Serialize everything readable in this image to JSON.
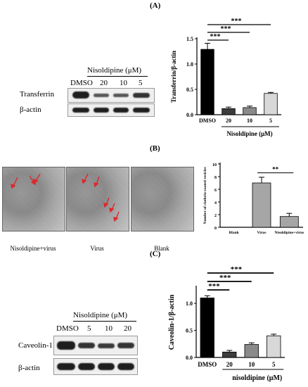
{
  "panels": {
    "A": {
      "label": "(A)",
      "blot": {
        "header": "Nisoldipine (μM)",
        "lanes": [
          "DMSO",
          "20",
          "10",
          "5"
        ],
        "rows": [
          "Transferrin",
          "β-actin"
        ]
      },
      "chart": {
        "ylabel": "Transferrin/β-actin",
        "xlabel": "Nisoldipine (μM)",
        "yticks": [
          "0.0",
          "0.5",
          "1.0",
          "1.5"
        ],
        "sig": [
          "***",
          "***",
          "***"
        ]
      }
    },
    "B": {
      "label": "(B)",
      "images": [
        {
          "caption": "Nisoldipine+virus"
        },
        {
          "caption": "Virus"
        },
        {
          "caption": "Blank"
        }
      ],
      "chart": {
        "ylabel": "Number of clathrin-coated vesicles",
        "yticks": [
          "0",
          "2",
          "4",
          "6",
          "8",
          "10"
        ],
        "sig": "**"
      }
    },
    "C": {
      "label": "(C)",
      "blot": {
        "header": "Nisoldipine (μM)",
        "lanes": [
          "DMSO",
          "5",
          "10",
          "20"
        ],
        "rows": [
          "Caveolin-1",
          "β-actin"
        ]
      },
      "chart": {
        "ylabel": "Caveolin-1/β-actin",
        "xlabel": "nisoldipine (μM)",
        "yticks": [
          "0.0",
          "0.5",
          "1.0"
        ],
        "sig": [
          "***",
          "***",
          "***"
        ]
      }
    }
  },
  "chart_data": [
    {
      "type": "bar",
      "categories": [
        "DMSO",
        "20",
        "10",
        "5"
      ],
      "values": [
        1.29,
        0.12,
        0.14,
        0.42
      ],
      "errors": [
        0.12,
        0.03,
        0.03,
        0.02
      ],
      "colors": [
        "#000000",
        "#3c3c3c",
        "#8a8a8a",
        "#d8d8d8"
      ],
      "ylabel": "Transferrin/β-actin",
      "xlabel": "Nisoldipine (μM)",
      "ylim": [
        0,
        1.5
      ]
    },
    {
      "type": "bar",
      "categories": [
        "Blank",
        "Virus",
        "Nisoldipine+virus"
      ],
      "values": [
        0,
        7.0,
        1.7
      ],
      "errors": [
        0,
        0.9,
        0.5
      ],
      "colors": [
        "#a6a6a6",
        "#a6a6a6",
        "#a6a6a6"
      ],
      "ylabel": "Number of clathrin-coated vesicles",
      "ylim": [
        0,
        10
      ]
    },
    {
      "type": "bar",
      "categories": [
        "DMSO",
        "20",
        "10",
        "5"
      ],
      "values": [
        1.1,
        0.1,
        0.24,
        0.4
      ],
      "errors": [
        0.04,
        0.03,
        0.03,
        0.03
      ],
      "colors": [
        "#000000",
        "#3c3c3c",
        "#8a8a8a",
        "#d8d8d8"
      ],
      "ylabel": "Caveolin-1/β-actin",
      "xlabel": "nisoldipine (μM)",
      "ylim": [
        0,
        1.3
      ]
    }
  ]
}
